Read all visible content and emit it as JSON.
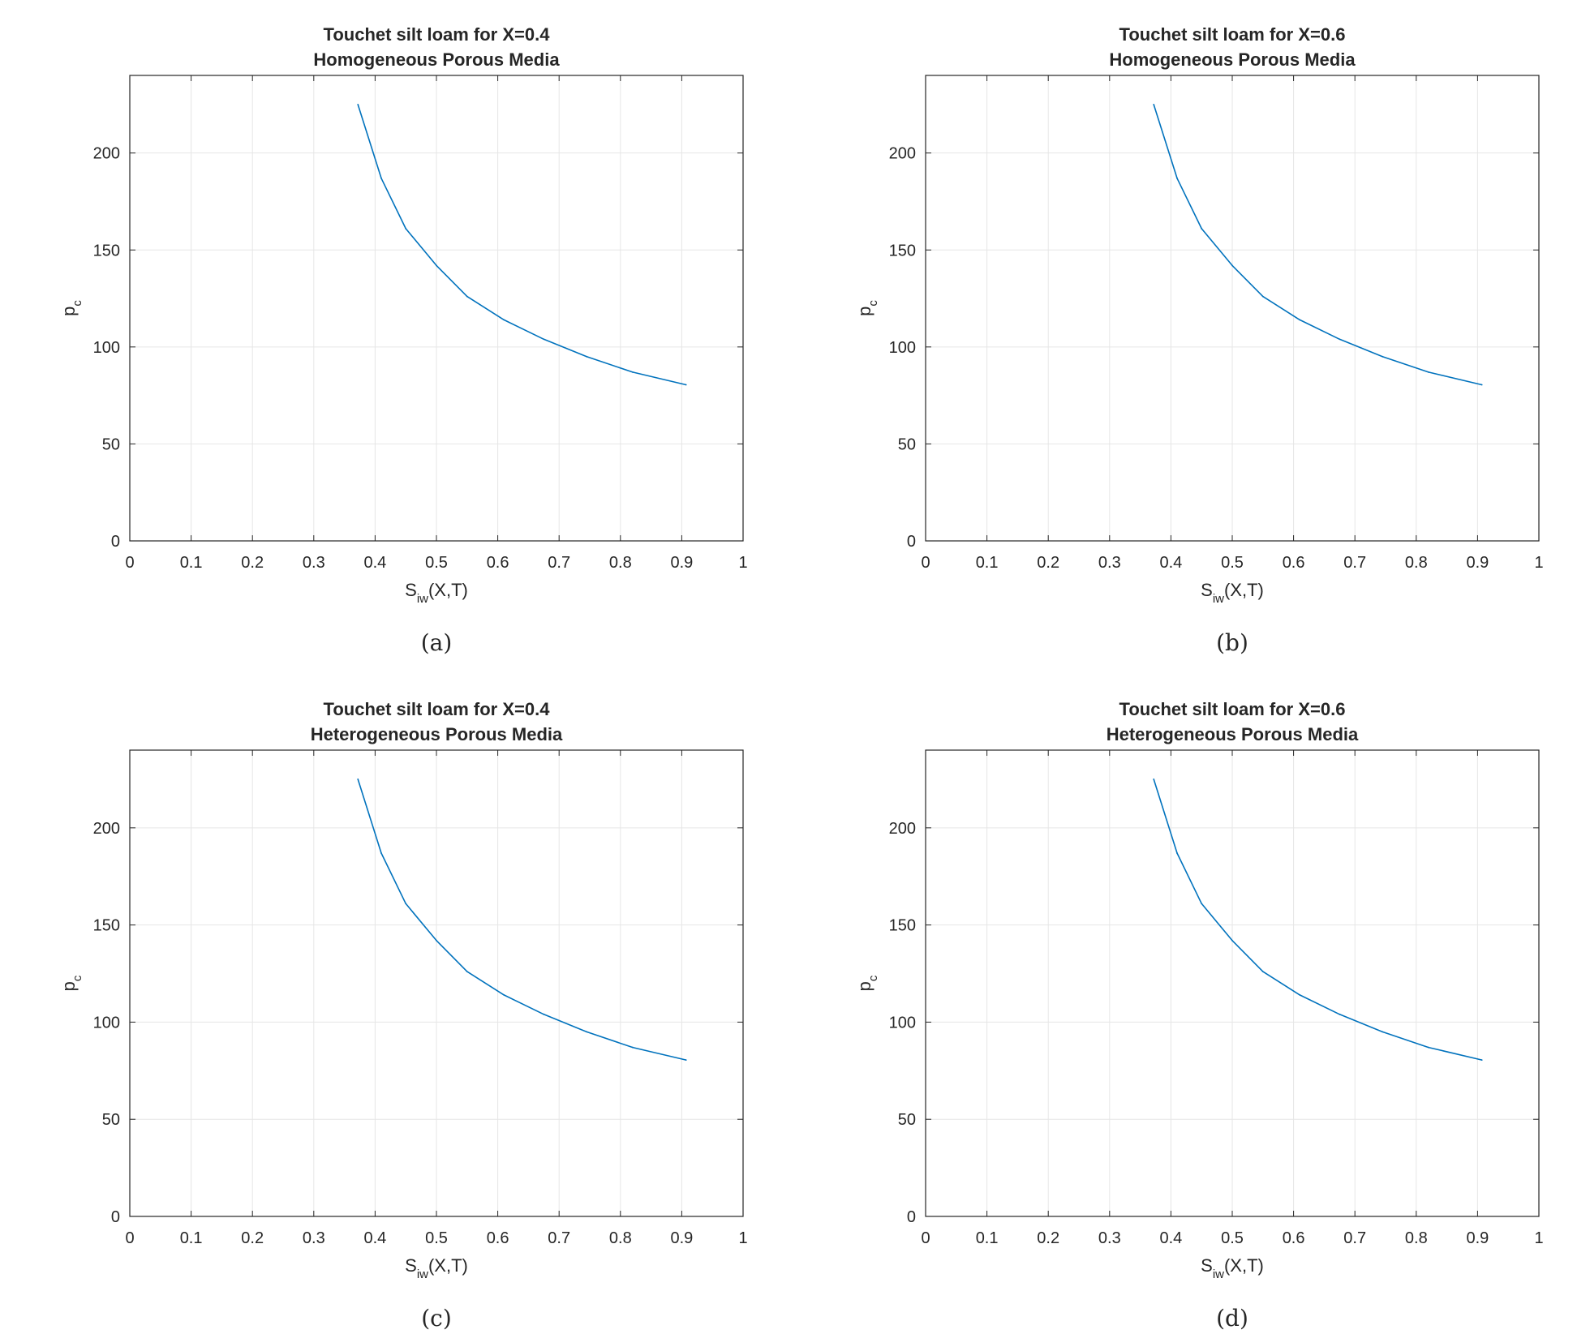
{
  "chart_data": [
    {
      "type": "line",
      "panel_label": "(a)",
      "title_line1": "Touchet silt loam for X=0.4",
      "title_line2": "Homogeneous Porous Media",
      "xlabel": {
        "main": "S",
        "sub": "iw",
        "rest": "(X,T)"
      },
      "ylabel": {
        "main": "p",
        "sub": "c"
      },
      "xlim": [
        0,
        1
      ],
      "ylim": [
        0,
        240
      ],
      "xticks": [
        "0",
        "0.1",
        "0.2",
        "0.3",
        "0.4",
        "0.5",
        "0.6",
        "0.7",
        "0.8",
        "0.9",
        "1"
      ],
      "yticks": [
        "0",
        "50",
        "100",
        "150",
        "200"
      ],
      "grid": true,
      "line_color": "#0072BD",
      "series": [
        {
          "x": [
            0.372,
            0.41,
            0.45,
            0.5,
            0.55,
            0.61,
            0.675,
            0.745,
            0.82,
            0.907
          ],
          "values": [
            225,
            187,
            161,
            142,
            126,
            114,
            104,
            95,
            87,
            80.5
          ]
        }
      ]
    },
    {
      "type": "line",
      "panel_label": "(b)",
      "title_line1": "Touchet silt loam for X=0.6",
      "title_line2": "Homogeneous Porous Media",
      "xlabel": {
        "main": "S",
        "sub": "iw",
        "rest": "(X,T)"
      },
      "ylabel": {
        "main": "p",
        "sub": "c"
      },
      "xlim": [
        0,
        1
      ],
      "ylim": [
        0,
        240
      ],
      "xticks": [
        "0",
        "0.1",
        "0.2",
        "0.3",
        "0.4",
        "0.5",
        "0.6",
        "0.7",
        "0.8",
        "0.9",
        "1"
      ],
      "yticks": [
        "0",
        "50",
        "100",
        "150",
        "200"
      ],
      "grid": true,
      "line_color": "#0072BD",
      "series": [
        {
          "x": [
            0.372,
            0.41,
            0.45,
            0.5,
            0.55,
            0.61,
            0.675,
            0.745,
            0.82,
            0.907
          ],
          "values": [
            225,
            187,
            161,
            142,
            126,
            114,
            104,
            95,
            87,
            80.5
          ]
        }
      ]
    },
    {
      "type": "line",
      "panel_label": "(c)",
      "title_line1": "Touchet silt loam for X=0.4",
      "title_line2": "Heterogeneous Porous Media",
      "xlabel": {
        "main": "S",
        "sub": "iw",
        "rest": "(X,T)"
      },
      "ylabel": {
        "main": "p",
        "sub": "c"
      },
      "xlim": [
        0,
        1
      ],
      "ylim": [
        0,
        240
      ],
      "xticks": [
        "0",
        "0.1",
        "0.2",
        "0.3",
        "0.4",
        "0.5",
        "0.6",
        "0.7",
        "0.8",
        "0.9",
        "1"
      ],
      "yticks": [
        "0",
        "50",
        "100",
        "150",
        "200"
      ],
      "grid": true,
      "line_color": "#0072BD",
      "series": [
        {
          "x": [
            0.372,
            0.41,
            0.45,
            0.5,
            0.55,
            0.61,
            0.675,
            0.745,
            0.82,
            0.907
          ],
          "values": [
            225,
            187,
            161,
            142,
            126,
            114,
            104,
            95,
            87,
            80.5
          ]
        }
      ]
    },
    {
      "type": "line",
      "panel_label": "(d)",
      "title_line1": "Touchet silt loam for X=0.6",
      "title_line2": "Heterogeneous Porous Media",
      "xlabel": {
        "main": "S",
        "sub": "iw",
        "rest": "(X,T)"
      },
      "ylabel": {
        "main": "p",
        "sub": "c"
      },
      "xlim": [
        0,
        1
      ],
      "ylim": [
        0,
        240
      ],
      "xticks": [
        "0",
        "0.1",
        "0.2",
        "0.3",
        "0.4",
        "0.5",
        "0.6",
        "0.7",
        "0.8",
        "0.9",
        "1"
      ],
      "yticks": [
        "0",
        "50",
        "100",
        "150",
        "200"
      ],
      "grid": true,
      "line_color": "#0072BD",
      "series": [
        {
          "x": [
            0.372,
            0.41,
            0.45,
            0.5,
            0.55,
            0.61,
            0.675,
            0.745,
            0.82,
            0.907
          ],
          "values": [
            225,
            187,
            161,
            142,
            126,
            114,
            104,
            95,
            87,
            80.5
          ]
        }
      ]
    }
  ]
}
